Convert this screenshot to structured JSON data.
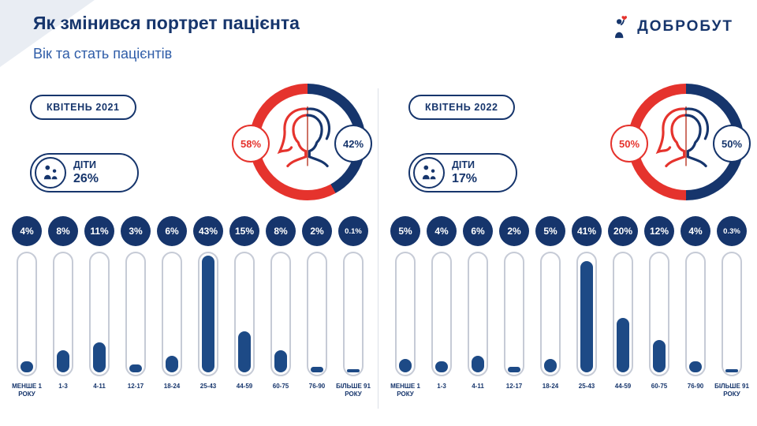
{
  "slide": {
    "title": "Як змінився портрет пацієнта",
    "subtitle": "Вік та стать пацієнтів",
    "brand": "ДОБРОБУТ"
  },
  "colors": {
    "navy": "#16356C",
    "subtitle_blue": "#2F5DA8",
    "red": "#E5332D",
    "bar_fill": "#1D4A86",
    "tube_border": "#C6CBD6",
    "divider": "#DCE0E8",
    "corner_gray": "#E9EDF3"
  },
  "panels": [
    {
      "badge": "КВІТЕНЬ 2021",
      "children": {
        "label": "ДІТИ",
        "value": "26%"
      },
      "gender": {
        "female": "58%",
        "male": "42%",
        "female_pct": 58,
        "male_pct": 42
      }
    },
    {
      "badge": "КВІТЕНЬ 2022",
      "children": {
        "label": "ДІТИ",
        "value": "17%"
      },
      "gender": {
        "female": "50%",
        "male": "50%",
        "female_pct": 50,
        "male_pct": 50
      }
    }
  ],
  "chart_data": [
    {
      "type": "bar",
      "title": "КВІТЕНЬ 2021",
      "categories": [
        "МЕНШЕ 1 РОКУ",
        "1-3",
        "4-11",
        "12-17",
        "18-24",
        "25-43",
        "44-59",
        "60-75",
        "76-90",
        "БІЛЬШЕ 91 РОКУ"
      ],
      "values": [
        4,
        8,
        11,
        3,
        6,
        43,
        15,
        8,
        2,
        0.1
      ],
      "labels": [
        "4%",
        "8%",
        "11%",
        "3%",
        "6%",
        "43%",
        "15%",
        "8%",
        "2%",
        "0.1%"
      ],
      "ylim": [
        0,
        43
      ],
      "annotations": [
        "ДІТИ 26%"
      ]
    },
    {
      "type": "bar",
      "title": "КВІТЕНЬ 2022",
      "categories": [
        "МЕНШЕ 1 РОКУ",
        "1-3",
        "4-11",
        "12-17",
        "18-24",
        "25-43",
        "44-59",
        "60-75",
        "76-90",
        "БІЛЬШЕ 91 РОКУ"
      ],
      "values": [
        5,
        4,
        6,
        2,
        5,
        41,
        20,
        12,
        4,
        0.3
      ],
      "labels": [
        "5%",
        "4%",
        "6%",
        "2%",
        "5%",
        "41%",
        "20%",
        "12%",
        "4%",
        "0.3%"
      ],
      "ylim": [
        0,
        43
      ],
      "annotations": [
        "ДІТИ 17%"
      ]
    },
    {
      "type": "pie",
      "title": "КВІТЕНЬ 2021",
      "categories": [
        "female",
        "male"
      ],
      "values": [
        58,
        42
      ]
    },
    {
      "type": "pie",
      "title": "КВІТЕНЬ 2022",
      "categories": [
        "female",
        "male"
      ],
      "values": [
        50,
        50
      ]
    }
  ]
}
